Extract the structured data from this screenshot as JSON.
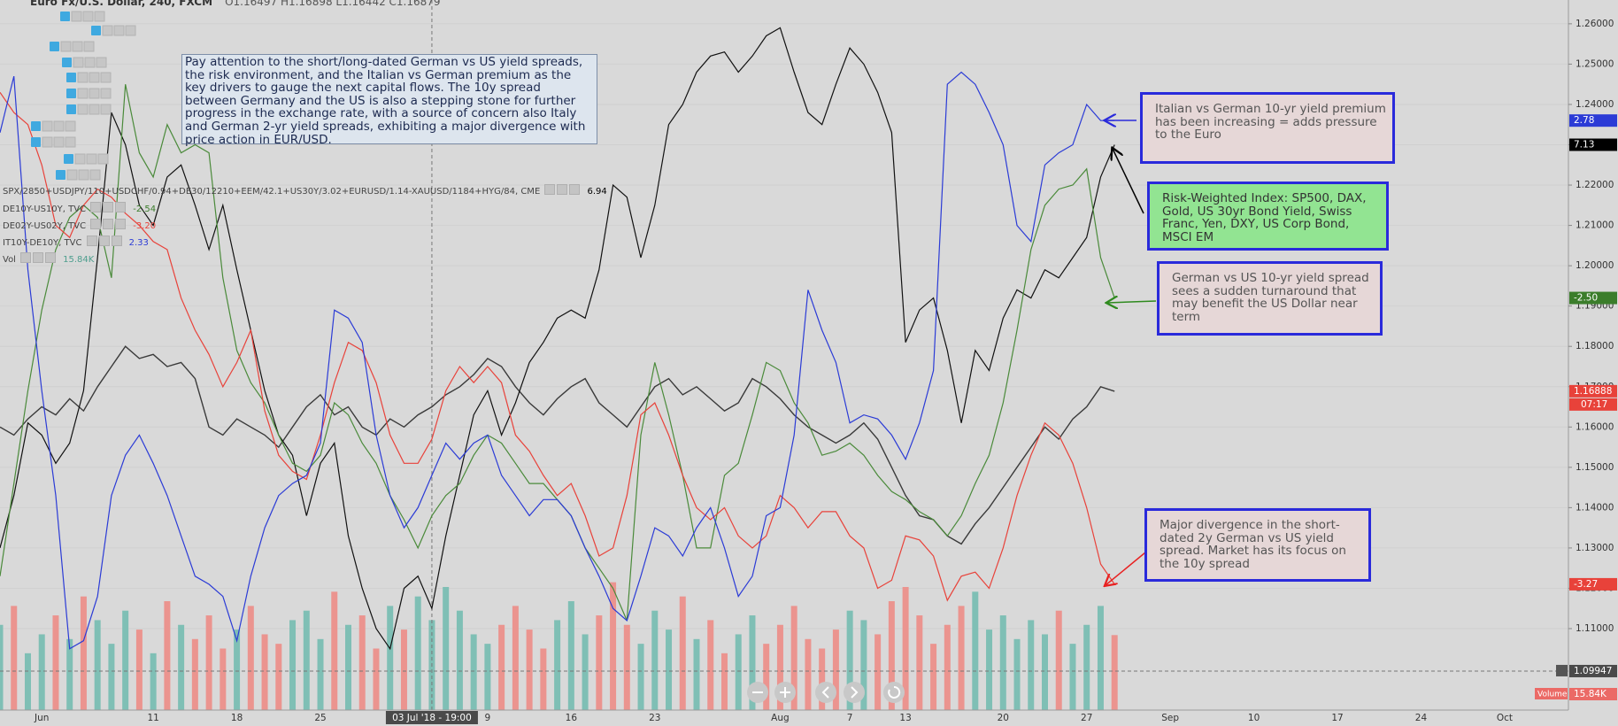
{
  "chart_data": {
    "type": "line",
    "title": "Euro Fx/U.S. Dollar, 240, FXCM",
    "ohlc": "O1.16497 H1.16898 L1.16442 C1.16879",
    "categories": [
      null,
      null,
      null,
      "Jun",
      null,
      null,
      null,
      null,
      null,
      null,
      null,
      "11",
      null,
      null,
      null,
      null,
      null,
      "18",
      null,
      null,
      null,
      null,
      null,
      "25",
      null,
      null,
      null,
      null,
      null,
      null,
      null,
      "03 Jul '18 - 19:00",
      null,
      null,
      null,
      "9",
      null,
      null,
      null,
      null,
      null,
      "16",
      null,
      null,
      null,
      null,
      null,
      "23",
      null,
      null,
      null,
      null,
      null,
      null,
      null,
      null,
      "Aug",
      null,
      null,
      null,
      null,
      "7",
      null,
      null,
      null,
      "13",
      null,
      null,
      null,
      null,
      null,
      null,
      "20",
      null,
      null,
      null,
      null,
      null,
      "27",
      null,
      null,
      null,
      null,
      null,
      "Sep",
      null,
      null,
      null,
      null,
      null,
      "10",
      null,
      null,
      null,
      null,
      null,
      "17",
      null,
      null,
      null,
      null,
      null,
      "24",
      null,
      null,
      null,
      null,
      null,
      "Oct"
    ],
    "ylim": [
      1.0898,
      1.2659
    ],
    "yticks": [
      {
        "value": 1.11,
        "label": "1.11000"
      },
      {
        "value": 1.12,
        "label": "1.12000"
      },
      {
        "value": 1.13,
        "label": "1.13000"
      },
      {
        "value": 1.14,
        "label": "1.14000"
      },
      {
        "value": 1.15,
        "label": "1.15000"
      },
      {
        "value": 1.16,
        "label": "1.16000"
      },
      {
        "value": 1.17,
        "label": "1.17000"
      },
      {
        "value": 1.18,
        "label": "1.18000"
      },
      {
        "value": 1.19,
        "label": "1.19000"
      },
      {
        "value": 1.2,
        "label": "1.20000"
      },
      {
        "value": 1.21,
        "label": "1.21000"
      },
      {
        "value": 1.22,
        "label": "1.22000"
      },
      {
        "value": 1.23,
        "label": "1.23000"
      },
      {
        "value": 1.24,
        "label": "1.24000"
      },
      {
        "value": 1.25,
        "label": "1.25000"
      },
      {
        "value": 1.26,
        "label": "1.26000"
      }
    ],
    "grid": true,
    "y2lim": [
      0,
      150
    ],
    "countdown": "07:17",
    "crosshair": {
      "price": 1.09947,
      "time": "03 Jul '18 - 19:00"
    },
    "series": [
      {
        "name": "Euro Fx/U.S. Dollar",
        "color": "#3a3a3a",
        "width": 1.4,
        "values": [
          1.16,
          1.158,
          1.162,
          1.165,
          1.163,
          1.167,
          1.164,
          1.17,
          1.175,
          1.18,
          1.177,
          1.178,
          1.175,
          1.176,
          1.172,
          1.16,
          1.158,
          1.162,
          1.16,
          1.158,
          1.155,
          1.16,
          1.165,
          1.168,
          1.163,
          1.165,
          1.16,
          1.158,
          1.162,
          1.16,
          1.163,
          1.165,
          1.168,
          1.17,
          1.173,
          1.177,
          1.175,
          1.17,
          1.166,
          1.163,
          1.167,
          1.17,
          1.172,
          1.166,
          1.163,
          1.16,
          1.165,
          1.17,
          1.172,
          1.168,
          1.17,
          1.167,
          1.164,
          1.166,
          1.172,
          1.17,
          1.167,
          1.163,
          1.16,
          1.158,
          1.156,
          1.158,
          1.161,
          1.157,
          1.15,
          1.143,
          1.138,
          1.137,
          1.133,
          1.131,
          1.136,
          1.14,
          1.145,
          1.15,
          1.155,
          1.16,
          1.157,
          1.162,
          1.165,
          1.17,
          1.16888,
          null,
          null,
          null,
          null,
          null,
          null,
          null,
          null,
          null,
          null,
          null,
          null,
          null,
          null,
          null,
          null,
          null,
          null,
          null,
          null,
          null,
          null,
          null,
          null,
          null,
          null,
          null,
          null
        ],
        "tag_color": "#e8423a"
      },
      {
        "name": "SPX/2850+USDJPY/110+USDCHF/0.94+DE30/12210+EEM/42.1+US30Y/3.02+EURUSD/1.14-XAUUSD/1184+HYG/84, CME",
        "legend_value": "6.94",
        "last_label": "7.13",
        "color": "#111111",
        "width": 1.2,
        "tag_color": "#000000",
        "values": [
          1.13,
          1.143,
          1.161,
          1.158,
          1.151,
          1.156,
          1.169,
          1.202,
          1.238,
          1.23,
          1.215,
          1.21,
          1.222,
          1.225,
          1.215,
          1.204,
          1.215,
          1.199,
          1.184,
          1.169,
          1.158,
          1.153,
          1.138,
          1.151,
          1.156,
          1.133,
          1.12,
          1.11,
          1.105,
          1.12,
          1.123,
          1.115,
          1.133,
          1.148,
          1.163,
          1.169,
          1.158,
          1.166,
          1.176,
          1.181,
          1.187,
          1.189,
          1.187,
          1.199,
          1.22,
          1.217,
          1.202,
          1.215,
          1.235,
          1.24,
          1.248,
          1.252,
          1.253,
          1.248,
          1.252,
          1.257,
          1.259,
          1.248,
          1.238,
          1.235,
          1.245,
          1.254,
          1.25,
          1.243,
          1.233,
          1.181,
          1.189,
          1.192,
          1.179,
          1.161,
          1.179,
          1.174,
          1.187,
          1.194,
          1.192,
          1.199,
          1.197,
          1.202,
          1.207,
          1.222,
          1.23,
          null,
          null,
          null,
          null,
          null,
          null,
          null,
          null,
          null,
          null,
          null,
          null,
          null,
          null,
          null,
          null,
          null,
          null,
          null,
          null,
          null,
          null,
          null,
          null,
          null,
          null,
          null,
          null
        ]
      },
      {
        "name": "DE10Y-US10Y, TVC",
        "legend_value": "-2.54",
        "last_label": "-2.50",
        "color": "#4a8a3a",
        "width": 1.2,
        "tag_color": "#3b7d2b",
        "values": [
          1.123,
          1.146,
          1.169,
          1.189,
          1.204,
          1.212,
          1.215,
          1.212,
          1.197,
          1.245,
          1.228,
          1.222,
          1.235,
          1.228,
          1.23,
          1.228,
          1.197,
          1.179,
          1.171,
          1.166,
          1.158,
          1.151,
          1.149,
          1.153,
          1.166,
          1.163,
          1.156,
          1.151,
          1.143,
          1.137,
          1.13,
          1.138,
          1.143,
          1.146,
          1.153,
          1.158,
          1.156,
          1.151,
          1.146,
          1.146,
          1.142,
          1.138,
          1.13,
          1.125,
          1.12,
          1.112,
          1.158,
          1.176,
          1.163,
          1.148,
          1.13,
          1.13,
          1.148,
          1.151,
          1.163,
          1.176,
          1.174,
          1.166,
          1.161,
          1.153,
          1.154,
          1.156,
          1.153,
          1.148,
          1.144,
          1.142,
          1.139,
          1.137,
          1.133,
          1.138,
          1.146,
          1.153,
          1.166,
          1.184,
          1.204,
          1.215,
          1.219,
          1.22,
          1.224,
          1.202,
          1.192,
          null,
          null,
          null,
          null,
          null,
          null,
          null,
          null,
          null,
          null,
          null,
          null,
          null,
          null,
          null,
          null,
          null,
          null,
          null,
          null,
          null,
          null,
          null,
          null,
          null,
          null,
          null,
          null
        ]
      },
      {
        "name": "DE02Y-US02Y, TVC",
        "legend_value": "-3.20",
        "last_label": "-3.27",
        "color": "#e8423a",
        "width": 1.2,
        "tag_color": "#e8423a",
        "values": [
          1.243,
          1.238,
          1.235,
          1.225,
          1.21,
          1.207,
          1.215,
          1.219,
          1.217,
          1.213,
          1.21,
          1.206,
          1.204,
          1.192,
          1.184,
          1.178,
          1.17,
          1.176,
          1.184,
          1.164,
          1.153,
          1.149,
          1.147,
          1.158,
          1.171,
          1.181,
          1.179,
          1.171,
          1.158,
          1.151,
          1.151,
          1.157,
          1.169,
          1.175,
          1.171,
          1.175,
          1.171,
          1.158,
          1.154,
          1.148,
          1.143,
          1.146,
          1.138,
          1.128,
          1.13,
          1.143,
          1.163,
          1.166,
          1.158,
          1.148,
          1.14,
          1.137,
          1.14,
          1.133,
          1.13,
          1.133,
          1.143,
          1.14,
          1.135,
          1.139,
          1.139,
          1.133,
          1.13,
          1.12,
          1.122,
          1.133,
          1.132,
          1.128,
          1.117,
          1.123,
          1.124,
          1.12,
          1.13,
          1.143,
          1.153,
          1.161,
          1.158,
          1.151,
          1.14,
          1.126,
          1.121,
          null,
          null,
          null,
          null,
          null,
          null,
          null,
          null,
          null,
          null,
          null,
          null,
          null,
          null,
          null,
          null,
          null,
          null,
          null,
          null,
          null,
          null,
          null,
          null,
          null,
          null,
          null,
          null
        ]
      },
      {
        "name": "IT10Y-DE10Y, TVC",
        "legend_value": "2.33",
        "last_label": "2.78",
        "color": "#2b3bd6",
        "width": 1.2,
        "tag_color": "#2b3bd6",
        "values": [
          1.233,
          1.247,
          1.199,
          1.169,
          1.143,
          1.105,
          1.107,
          1.118,
          1.143,
          1.153,
          1.158,
          1.151,
          1.143,
          1.133,
          1.123,
          1.121,
          1.118,
          1.107,
          1.123,
          1.135,
          1.143,
          1.146,
          1.148,
          1.156,
          1.189,
          1.187,
          1.181,
          1.158,
          1.143,
          1.135,
          1.14,
          1.148,
          1.156,
          1.152,
          1.156,
          1.158,
          1.148,
          1.143,
          1.138,
          1.142,
          1.142,
          1.138,
          1.13,
          1.123,
          1.115,
          1.112,
          1.123,
          1.135,
          1.133,
          1.128,
          1.135,
          1.14,
          1.13,
          1.118,
          1.123,
          1.138,
          1.14,
          1.158,
          1.194,
          1.184,
          1.176,
          1.161,
          1.163,
          1.162,
          1.158,
          1.152,
          1.161,
          1.174,
          1.245,
          1.248,
          1.245,
          1.238,
          1.23,
          1.21,
          1.206,
          1.225,
          1.228,
          1.23,
          1.24,
          1.236,
          1.236,
          null,
          null,
          null,
          null,
          null,
          null,
          null,
          null,
          null,
          null,
          null,
          null,
          null,
          null,
          null,
          null,
          null,
          null,
          null,
          null,
          null,
          null,
          null,
          null,
          null,
          null,
          null,
          null
        ]
      }
    ],
    "volume": {
      "name": "Vol",
      "axis": "y2",
      "legend_value": "15.84K",
      "axis_title": "Volume",
      "last_label": "15.84K",
      "up_color": "#7fbfb5",
      "down_color": "#eb948f",
      "values": [
        18,
        22,
        12,
        16,
        20,
        15,
        24,
        19,
        14,
        21,
        17,
        12,
        23,
        18,
        15,
        20,
        13,
        17,
        22,
        16,
        14,
        19,
        21,
        15,
        25,
        18,
        20,
        13,
        22,
        17,
        24,
        19,
        26,
        21,
        16,
        14,
        18,
        22,
        17,
        13,
        19,
        23,
        16,
        20,
        27,
        18,
        14,
        21,
        17,
        24,
        15,
        19,
        12,
        16,
        20,
        14,
        18,
        22,
        15,
        13,
        17,
        21,
        19,
        16,
        23,
        26,
        20,
        14,
        18,
        22,
        25,
        17,
        20,
        15,
        19,
        16,
        21,
        14,
        18,
        22,
        15.84,
        null,
        null,
        null,
        null,
        null,
        null,
        null,
        null,
        null,
        null,
        null,
        null,
        null,
        null,
        null,
        null,
        null,
        null,
        null,
        null,
        null,
        null,
        null,
        null,
        null,
        null,
        null,
        null
      ]
    },
    "annotations": {
      "note": "Pay attention to the short/long-dated German vs US yield spreads, the risk environment, and the Italian vs German premium as the key drivers to gauge the next capital flows. The 10y spread between Germany and the US is also a stepping stone for further progress in the exchange rate, with a source of concern also Italy and German 2-yr yield spreads, exhibiting a major divergence with price action in EUR/USD.",
      "italian": "Italian vs German 10-yr yield premium has been increasing = adds pressure to the Euro",
      "risk": "Risk-Weighted Index: SP500, DAX, Gold, US 30yr Bond Yield, Swiss Franc, Yen, DXY, US Corp Bond, MSCI EM",
      "german": "German vs US 10-yr yield spread sees a sudden turnaround that may benefit the US Dollar near term",
      "divergence": "Major divergence in the short-dated 2y German vs US yield spread. Market has its focus on the 10y spread"
    }
  }
}
